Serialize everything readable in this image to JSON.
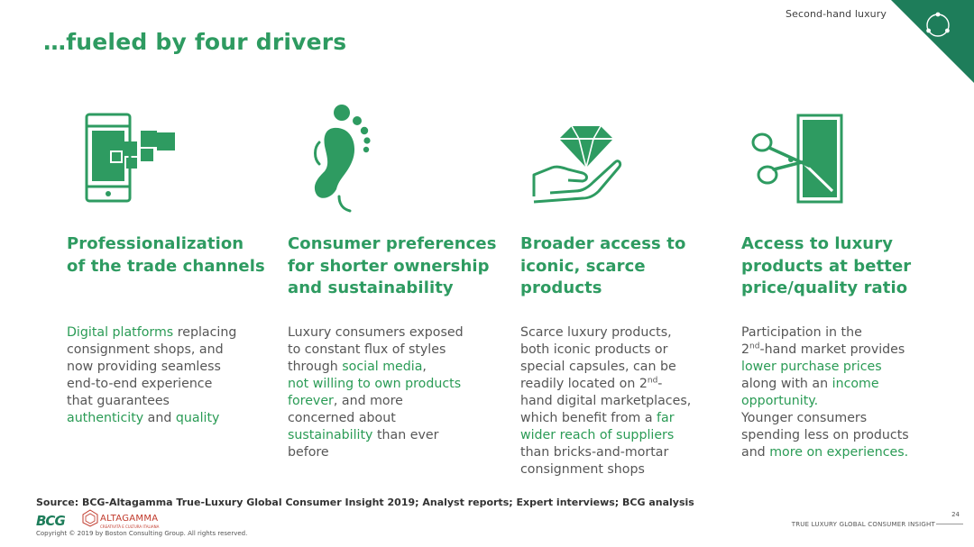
{
  "header": {
    "section_label": "Second-hand luxury",
    "title": "…fueled by four drivers"
  },
  "colors": {
    "accent": "#2e9b61",
    "corner": "#1e7d5a",
    "body_text": "#565656"
  },
  "drivers": [
    {
      "icon": "smartphone-pixels-icon",
      "heading": [
        "Professionalization",
        "of the trade channels"
      ],
      "body": [
        [
          {
            "t": "Digital platforms",
            "h": true
          },
          {
            "t": " replacing",
            "h": false
          }
        ],
        [
          {
            "t": "consignment shops, and",
            "h": false
          }
        ],
        [
          {
            "t": "now providing seamless",
            "h": false
          }
        ],
        [
          {
            "t": "end-to-end experience",
            "h": false
          }
        ],
        [
          {
            "t": "that guarantees",
            "h": false
          }
        ],
        [
          {
            "t": "authenticity",
            "h": true
          },
          {
            "t": " and ",
            "h": false
          },
          {
            "t": "quality",
            "h": true
          }
        ]
      ]
    },
    {
      "icon": "footprint-icon",
      "heading": [
        "Consumer preferences",
        "for shorter ownership",
        "and sustainability"
      ],
      "body": [
        [
          {
            "t": "Luxury consumers exposed",
            "h": false
          }
        ],
        [
          {
            "t": "to constant flux of styles",
            "h": false
          }
        ],
        [
          {
            "t": "through ",
            "h": false
          },
          {
            "t": "social media",
            "h": true
          },
          {
            "t": ",",
            "h": false
          }
        ],
        [
          {
            "t": "not willing to own products",
            "h": true
          }
        ],
        [
          {
            "t": "forever",
            "h": true
          },
          {
            "t": ", and more",
            "h": false
          }
        ],
        [
          {
            "t": "concerned about",
            "h": false
          }
        ],
        [
          {
            "t": "sustainability",
            "h": true
          },
          {
            "t": " than ever",
            "h": false
          }
        ],
        [
          {
            "t": "before",
            "h": false
          }
        ]
      ]
    },
    {
      "icon": "hand-diamond-icon",
      "heading": [
        "Broader access to",
        "iconic, scarce",
        "products"
      ],
      "body": [
        [
          {
            "t": "Scarce luxury products,",
            "h": false
          }
        ],
        [
          {
            "t": "both iconic products or",
            "h": false
          }
        ],
        [
          {
            "t": "special capsules, can be",
            "h": false
          }
        ],
        [
          {
            "t": "readily located on 2",
            "h": false
          },
          {
            "t": "nd",
            "h": false,
            "sup": true
          },
          {
            "t": "-",
            "h": false
          }
        ],
        [
          {
            "t": "hand digital marketplaces,",
            "h": false
          }
        ],
        [
          {
            "t": "which benefit from a ",
            "h": false
          },
          {
            "t": "far",
            "h": true
          }
        ],
        [
          {
            "t": "wider reach of suppliers",
            "h": true
          }
        ],
        [
          {
            "t": "than bricks-and-mortar",
            "h": false
          }
        ],
        [
          {
            "t": "consignment shops",
            "h": false
          }
        ]
      ]
    },
    {
      "icon": "scissors-cutting-money-icon",
      "heading": [
        "Access to luxury",
        "products at better",
        "price/quality ratio"
      ],
      "body": [
        [
          {
            "t": "Participation in the",
            "h": false
          }
        ],
        [
          {
            "t": "2",
            "h": false
          },
          {
            "t": "nd",
            "h": false,
            "sup": true
          },
          {
            "t": "-hand market provides",
            "h": false
          }
        ],
        [
          {
            "t": "lower purchase prices",
            "h": true
          }
        ],
        [
          {
            "t": "along with an ",
            "h": false
          },
          {
            "t": "income",
            "h": true
          }
        ],
        [
          {
            "t": "opportunity.",
            "h": true
          }
        ],
        [
          {
            "t": "Younger consumers",
            "h": false
          }
        ],
        [
          {
            "t": "spending less on products",
            "h": false
          }
        ],
        [
          {
            "t": "and ",
            "h": false
          },
          {
            "t": "more on experiences.",
            "h": true
          }
        ]
      ]
    }
  ],
  "footer": {
    "source": "Source: BCG-Altagamma True-Luxury Global Consumer Insight 2019; Analyst reports; Expert interviews; BCG analysis",
    "bcg_logo": "BCG",
    "altagamma_logo": "ALTAGAMMA",
    "altagamma_sub": "CREATIVITÀ E CULTURA ITALIANA",
    "copyright": "Copyright © 2019 by Boston Consulting Group. All rights reserved.",
    "page_number": "24",
    "tag": "TRUE LUXURY GLOBAL CONSUMER INSIGHT"
  }
}
